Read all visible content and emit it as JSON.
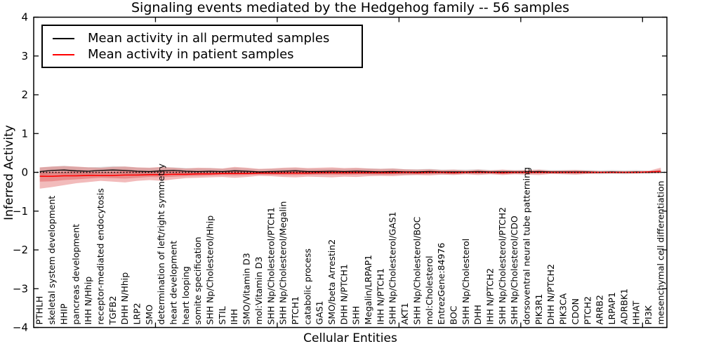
{
  "legend": {
    "items": [
      {
        "label": "Mean activity in all permuted samples",
        "color": "#000000"
      },
      {
        "label": "Mean activity in patient samples",
        "color": "#ff0000"
      }
    ]
  },
  "chart_data": {
    "type": "line",
    "title": "Signaling events mediated by the Hedgehog family -- 56 samples",
    "xlabel": "Cellular Entities",
    "ylabel": "Inferred Activity",
    "ylim": [
      -4,
      4
    ],
    "yticks": [
      4,
      3,
      2,
      1,
      0,
      -1,
      -2,
      -3,
      -4
    ],
    "xlim": [
      0,
      52
    ],
    "xticks": [
      10,
      20,
      30,
      40,
      50
    ],
    "grid": false,
    "legend_position": "upper left",
    "categories": [
      "PTHLH",
      "skeletal system development",
      "HHIP",
      "pancreas development",
      "IHH N/Hhip",
      "receptor-mediated endocytosis",
      "TGFB2",
      "DHH N/Hhip",
      "LRP2",
      "SMO",
      "determination of left/right symmetry",
      "heart development",
      "heart looping",
      "somite specification",
      "SHH Np/Cholesterol/Hhip",
      "STIL",
      "IHH",
      "SMO/Vitamin D3",
      "mol:Vitamin D3",
      "SHH Np/Cholesterol/PTCH1",
      "SHH Np/Cholesterol/Megalin",
      "PTCH1",
      "catabolic process",
      "GAS1",
      "SMO/beta Arrestin2",
      "DHH N/PTCH1",
      "SHH",
      "Megalin/LRPAP1",
      "IHH N/PTCH1",
      "SHH Np/Cholesterol/GAS1",
      "AKT1",
      "SHH Np/Cholesterol/BOC",
      "mol:Cholesterol",
      "EntrezGene:84976",
      "BOC",
      "SHH Np/Cholesterol",
      "DHH",
      "IHH N/PTCH2",
      "SHH Np/Cholesterol/PTCH2",
      "SHH Np/Cholesterol/CDO",
      "dorsoventral neural tube patterning",
      "PIK3R1",
      "DHH N/PTCH2",
      "PIK3CA",
      "CDON",
      "PTCH2",
      "ARRB2",
      "LRPAP1",
      "ADRBK1",
      "HHAT",
      "PI3K",
      "mesenchymal cell differentiation"
    ],
    "series": [
      {
        "name": "Mean activity in all permuted samples",
        "color": "#000000",
        "values": [
          0.02,
          0.05,
          0.06,
          0.04,
          0.03,
          0.05,
          0.06,
          0.05,
          0.03,
          0.02,
          0.04,
          0.05,
          0.03,
          0.02,
          0.03,
          0.02,
          0.04,
          0.03,
          0.01,
          0.02,
          0.03,
          0.04,
          0.02,
          0.02,
          0.03,
          0.02,
          0.03,
          0.02,
          0.01,
          0.02,
          0.01,
          0.01,
          0.02,
          0.01,
          0.01,
          0.01,
          0.02,
          0.01,
          0.01,
          0.01,
          0.01,
          0.02,
          0.01,
          0.01,
          0.01,
          0.01,
          0.0,
          0.01,
          0.0,
          0.01,
          0.0,
          0.01
        ]
      },
      {
        "name": "Mean activity in patient samples",
        "color": "#ff0000",
        "values": [
          -0.1,
          -0.1,
          -0.09,
          -0.09,
          -0.08,
          -0.08,
          -0.08,
          -0.07,
          -0.07,
          -0.06,
          -0.06,
          -0.05,
          -0.05,
          -0.04,
          -0.04,
          -0.03,
          -0.03,
          -0.03,
          -0.02,
          -0.02,
          -0.02,
          -0.02,
          -0.02,
          -0.01,
          -0.01,
          -0.01,
          -0.01,
          -0.01,
          -0.01,
          -0.01,
          0.0,
          -0.01,
          0.0,
          0.0,
          -0.01,
          0.0,
          0.0,
          0.0,
          -0.01,
          0.0,
          0.0,
          0.0,
          0.0,
          0.0,
          0.0,
          0.0,
          0.0,
          0.0,
          0.0,
          0.0,
          0.01,
          0.02
        ]
      }
    ],
    "bands": [
      {
        "name": "permuted-std-band",
        "color": "#858585",
        "opacity": 0.25,
        "upper": [
          0.12,
          0.15,
          0.17,
          0.14,
          0.13,
          0.14,
          0.16,
          0.15,
          0.12,
          0.11,
          0.13,
          0.13,
          0.11,
          0.1,
          0.11,
          0.09,
          0.12,
          0.1,
          0.08,
          0.09,
          0.1,
          0.11,
          0.09,
          0.09,
          0.1,
          0.09,
          0.1,
          0.1,
          0.09,
          0.1,
          0.08,
          0.08,
          0.09,
          0.07,
          0.07,
          0.07,
          0.08,
          0.06,
          0.06,
          0.06,
          0.06,
          0.07,
          0.06,
          0.06,
          0.06,
          0.06,
          0.05,
          0.06,
          0.05,
          0.06,
          0.04,
          0.05
        ],
        "lower": [
          -0.08,
          -0.05,
          -0.05,
          -0.06,
          -0.07,
          -0.04,
          -0.04,
          -0.05,
          -0.06,
          -0.07,
          -0.05,
          -0.03,
          -0.05,
          -0.06,
          -0.05,
          -0.05,
          -0.04,
          -0.04,
          -0.06,
          -0.05,
          -0.04,
          -0.03,
          -0.05,
          -0.05,
          -0.04,
          -0.05,
          -0.04,
          -0.06,
          -0.07,
          -0.06,
          -0.06,
          -0.06,
          -0.05,
          -0.05,
          -0.05,
          -0.05,
          -0.04,
          -0.04,
          -0.04,
          -0.04,
          -0.04,
          -0.03,
          -0.04,
          -0.04,
          -0.04,
          -0.04,
          -0.05,
          -0.04,
          -0.05,
          -0.04,
          -0.04,
          -0.03
        ]
      },
      {
        "name": "patient-std-outer-band",
        "color": "#d93030",
        "opacity": 0.33,
        "upper": [
          0.13,
          0.15,
          0.16,
          0.15,
          0.13,
          0.12,
          0.14,
          0.15,
          0.13,
          0.12,
          0.14,
          0.12,
          0.1,
          0.12,
          0.11,
          0.1,
          0.14,
          0.12,
          0.09,
          0.1,
          0.12,
          0.13,
          0.11,
          0.12,
          0.13,
          0.11,
          0.12,
          0.1,
          0.09,
          0.1,
          0.08,
          0.07,
          0.08,
          0.06,
          0.07,
          0.05,
          0.07,
          0.05,
          0.07,
          0.05,
          0.06,
          0.07,
          0.04,
          0.05,
          0.06,
          0.04,
          0.03,
          0.03,
          0.03,
          0.03,
          0.04,
          0.12
        ],
        "lower": [
          -0.42,
          -0.38,
          -0.33,
          -0.28,
          -0.25,
          -0.22,
          -0.24,
          -0.26,
          -0.22,
          -0.2,
          -0.22,
          -0.18,
          -0.15,
          -0.14,
          -0.13,
          -0.12,
          -0.14,
          -0.12,
          -0.09,
          -0.1,
          -0.12,
          -0.13,
          -0.11,
          -0.12,
          -0.13,
          -0.11,
          -0.12,
          -0.1,
          -0.09,
          -0.1,
          -0.08,
          -0.07,
          -0.08,
          -0.06,
          -0.07,
          -0.05,
          -0.07,
          -0.05,
          -0.07,
          -0.05,
          -0.06,
          -0.07,
          -0.04,
          -0.05,
          -0.06,
          -0.04,
          -0.03,
          -0.03,
          -0.03,
          -0.03,
          -0.02,
          -0.02
        ]
      },
      {
        "name": "patient-std-inner-band",
        "color": "#d93030",
        "opacity": 0.33,
        "upper": [
          0.0,
          0.01,
          0.02,
          0.02,
          0.01,
          0.01,
          0.02,
          0.03,
          0.02,
          0.02,
          0.03,
          0.03,
          0.02,
          0.03,
          0.03,
          0.03,
          0.05,
          0.04,
          0.03,
          0.03,
          0.04,
          0.05,
          0.04,
          0.05,
          0.05,
          0.04,
          0.05,
          0.04,
          0.04,
          0.04,
          0.04,
          0.03,
          0.04,
          0.03,
          0.03,
          0.02,
          0.03,
          0.02,
          0.03,
          0.02,
          0.03,
          0.03,
          0.02,
          0.02,
          0.03,
          0.02,
          0.01,
          0.01,
          0.01,
          0.01,
          0.02,
          0.07
        ],
        "lower": [
          -0.24,
          -0.23,
          -0.2,
          -0.18,
          -0.16,
          -0.14,
          -0.15,
          -0.16,
          -0.14,
          -0.12,
          -0.13,
          -0.11,
          -0.1,
          -0.09,
          -0.08,
          -0.07,
          -0.08,
          -0.07,
          -0.05,
          -0.06,
          -0.07,
          -0.07,
          -0.06,
          -0.06,
          -0.06,
          -0.06,
          -0.06,
          -0.05,
          -0.05,
          -0.05,
          -0.04,
          -0.04,
          -0.04,
          -0.03,
          -0.04,
          -0.02,
          -0.03,
          -0.02,
          -0.04,
          -0.02,
          -0.03,
          -0.03,
          -0.02,
          -0.02,
          -0.03,
          -0.02,
          -0.01,
          -0.01,
          -0.01,
          -0.01,
          0.0,
          0.0
        ]
      }
    ],
    "zero_line": {
      "value": 0,
      "style": "dotted",
      "color": "#000000"
    }
  }
}
